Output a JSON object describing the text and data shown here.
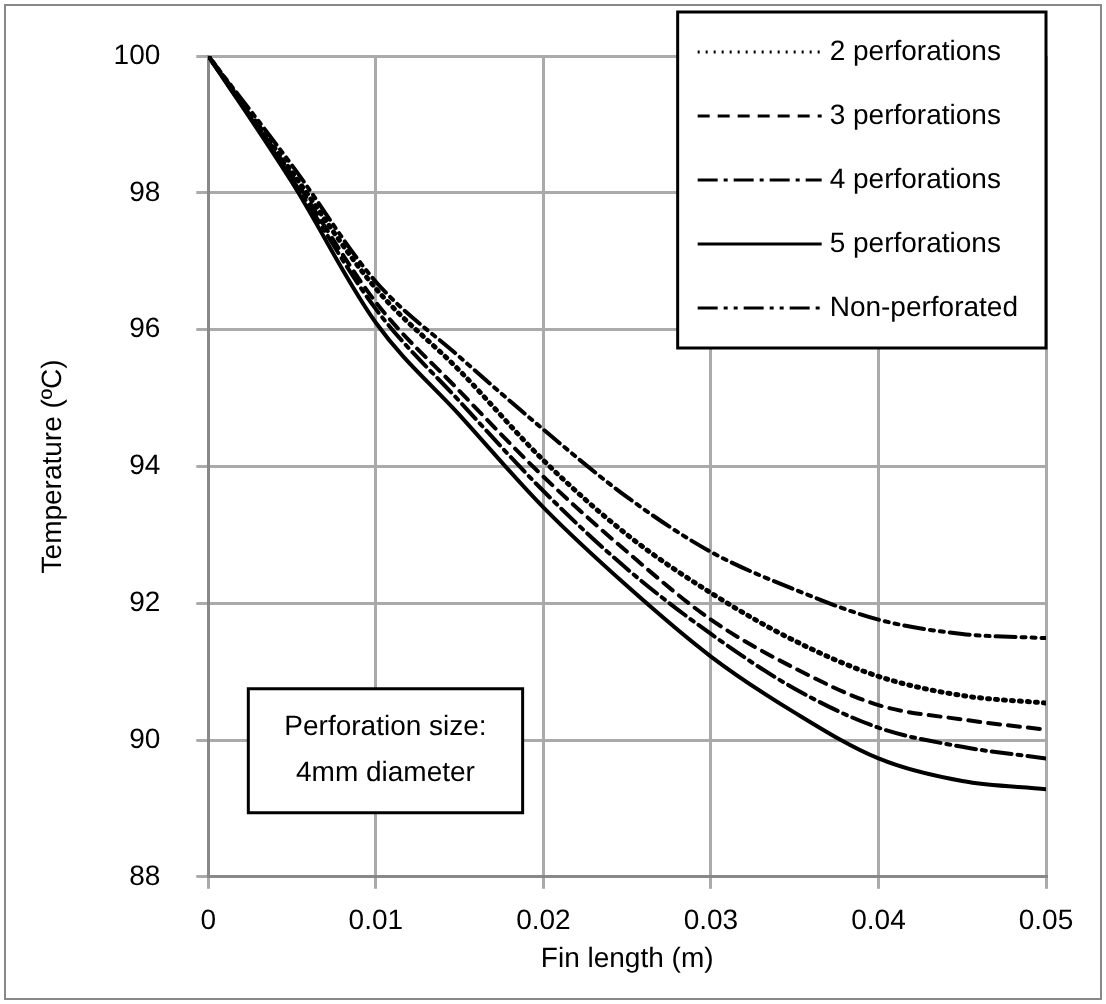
{
  "chart_data": {
    "type": "line",
    "xlabel": "Fin length (m)",
    "ylabel": "Temperature (ºC)",
    "x": [
      0,
      0.005,
      0.01,
      0.015,
      0.02,
      0.025,
      0.03,
      0.035,
      0.04,
      0.045,
      0.05
    ],
    "series": [
      {
        "name": "2 perforations",
        "color": "#000000",
        "line_style": "dotted",
        "values": [
          100,
          98.3,
          96.6,
          95.4,
          94.09,
          93.0,
          92.15,
          91.45,
          90.93,
          90.65,
          90.54
        ]
      },
      {
        "name": "3 perforations",
        "color": "#000000",
        "line_style": "dashed",
        "values": [
          100,
          98.25,
          96.4,
          95.1,
          93.85,
          92.75,
          91.76,
          91.05,
          90.51,
          90.3,
          90.15
        ]
      },
      {
        "name": "4 perforations",
        "color": "#000000",
        "line_style": "dashdot",
        "values": [
          100,
          98.2,
          96.3,
          94.95,
          93.64,
          92.5,
          91.55,
          90.75,
          90.18,
          89.9,
          89.73
        ]
      },
      {
        "name": "5 perforations",
        "color": "#000000",
        "line_style": "solid",
        "values": [
          100,
          98.15,
          96.1,
          94.75,
          93.4,
          92.25,
          91.22,
          90.4,
          89.73,
          89.4,
          89.28
        ]
      },
      {
        "name": "Non-perforated",
        "color": "#000000",
        "line_style": "dashdotdot",
        "values": [
          100,
          98.4,
          96.7,
          95.6,
          94.54,
          93.55,
          92.75,
          92.2,
          91.76,
          91.55,
          91.49
        ]
      }
    ],
    "xlim": [
      0,
      0.05
    ],
    "xticks": [
      0,
      0.01,
      0.02,
      0.03,
      0.04,
      0.05
    ],
    "ylim": [
      88,
      100
    ],
    "yticks": [
      88,
      90,
      92,
      94,
      96,
      98,
      100
    ],
    "grid": true,
    "legend": "top right",
    "marker": "none",
    "annotations": [
      "Perforation size:\n4mm diameter"
    ]
  }
}
